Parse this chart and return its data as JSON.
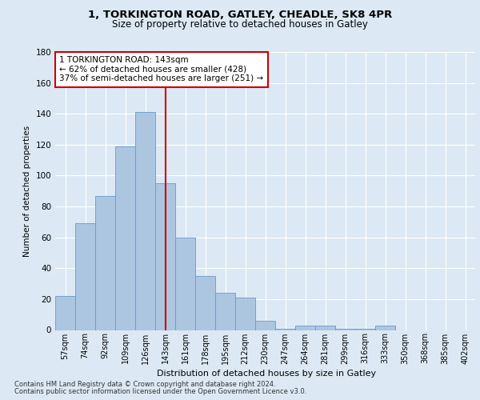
{
  "title1": "1, TORKINGTON ROAD, GATLEY, CHEADLE, SK8 4PR",
  "title2": "Size of property relative to detached houses in Gatley",
  "xlabel": "Distribution of detached houses by size in Gatley",
  "ylabel": "Number of detached properties",
  "bar_labels": [
    "57sqm",
    "74sqm",
    "92sqm",
    "109sqm",
    "126sqm",
    "143sqm",
    "161sqm",
    "178sqm",
    "195sqm",
    "212sqm",
    "230sqm",
    "247sqm",
    "264sqm",
    "281sqm",
    "299sqm",
    "316sqm",
    "333sqm",
    "350sqm",
    "368sqm",
    "385sqm",
    "402sqm"
  ],
  "bar_values": [
    22,
    69,
    87,
    119,
    141,
    95,
    60,
    35,
    24,
    21,
    6,
    1,
    3,
    3,
    1,
    1,
    3,
    0,
    0,
    0,
    0
  ],
  "bar_color": "#adc6e0",
  "bar_edge_color": "#6699cc",
  "vline_x": 5,
  "vline_color": "#cc0000",
  "annotation_text": "1 TORKINGTON ROAD: 143sqm\n← 62% of detached houses are smaller (428)\n37% of semi-detached houses are larger (251) →",
  "annotation_box_color": "#ffffff",
  "annotation_box_edge": "#cc0000",
  "bg_color": "#dce9f5",
  "plot_bg": "#dce9f5",
  "grid_color": "#ffffff",
  "ylim": [
    0,
    180
  ],
  "yticks": [
    0,
    20,
    40,
    60,
    80,
    100,
    120,
    140,
    160,
    180
  ],
  "footer1": "Contains HM Land Registry data © Crown copyright and database right 2024.",
  "footer2": "Contains public sector information licensed under the Open Government Licence v3.0."
}
